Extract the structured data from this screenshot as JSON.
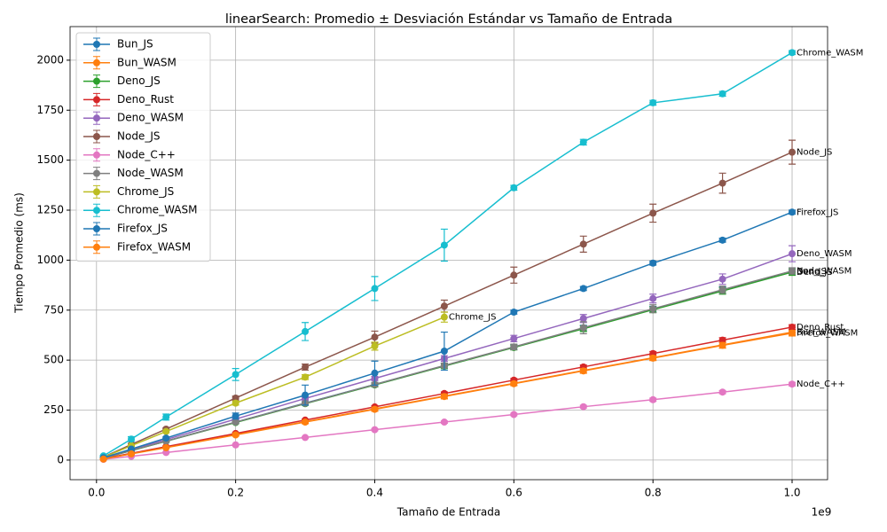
{
  "chart_data": {
    "type": "errorbar-line",
    "title": "linearSearch: Promedio ± Desviación Estándar vs Tamaño de Entrada",
    "xlabel": "Tamaño de Entrada",
    "ylabel": "Tiempo Promedio (ms)",
    "x_offset_label": "1e9",
    "x": [
      10000000,
      50000000,
      100000000,
      200000000,
      300000000,
      400000000,
      500000000,
      600000000,
      700000000,
      800000000,
      900000000,
      1000000000
    ],
    "xlim": [
      -38000000,
      1051000000
    ],
    "xticks": [
      {
        "value": 0,
        "label": "0.0"
      },
      {
        "value": 200000000,
        "label": "0.2"
      },
      {
        "value": 400000000,
        "label": "0.4"
      },
      {
        "value": 600000000,
        "label": "0.6"
      },
      {
        "value": 800000000,
        "label": "0.8"
      },
      {
        "value": 1000000000,
        "label": "1.0"
      }
    ],
    "ylim": [
      -98,
      2168
    ],
    "yticks": [
      0,
      250,
      500,
      750,
      1000,
      1250,
      1500,
      1750,
      2000
    ],
    "grid": true,
    "legend": "upper left",
    "series": [
      {
        "name": "Bun_JS",
        "color": "#1f77b4",
        "values": [
          10,
          48,
          95,
          190,
          285,
          378,
          472,
          565,
          660,
          755,
          850,
          945
        ],
        "errors": [
          2,
          3,
          4,
          6,
          8,
          10,
          12,
          12,
          14,
          14,
          16,
          16
        ]
      },
      {
        "name": "Bun_WASM",
        "color": "#ff7f0e",
        "values": [
          6,
          32,
          64,
          128,
          192,
          256,
          320,
          384,
          448,
          512,
          576,
          640
        ],
        "errors": [
          2,
          3,
          4,
          6,
          8,
          10,
          12,
          10,
          12,
          12,
          14,
          14
        ]
      },
      {
        "name": "Deno_JS",
        "color": "#2ca02c",
        "values": [
          10,
          47,
          94,
          188,
          282,
          376,
          470,
          563,
          657,
          752,
          846,
          940
        ],
        "errors": [
          2,
          3,
          4,
          6,
          8,
          10,
          12,
          12,
          14,
          14,
          16,
          16
        ]
      },
      {
        "name": "Deno_Rust",
        "color": "#d62728",
        "values": [
          7,
          34,
          67,
          133,
          200,
          266,
          333,
          400,
          466,
          533,
          600,
          665
        ],
        "errors": [
          1,
          2,
          3,
          4,
          5,
          6,
          8,
          8,
          10,
          10,
          12,
          12
        ]
      },
      {
        "name": "Deno_WASM",
        "color": "#9467bd",
        "values": [
          11,
          52,
          103,
          205,
          308,
          408,
          508,
          608,
          708,
          808,
          905,
          1032
        ],
        "errors": [
          2,
          3,
          4,
          6,
          8,
          10,
          14,
          16,
          20,
          22,
          26,
          40
        ]
      },
      {
        "name": "Node_JS",
        "color": "#8c564b",
        "values": [
          15,
          78,
          155,
          310,
          465,
          615,
          770,
          925,
          1080,
          1235,
          1385,
          1540
        ],
        "errors": [
          2,
          4,
          6,
          10,
          15,
          30,
          30,
          40,
          40,
          45,
          50,
          60
        ]
      },
      {
        "name": "Node_C++",
        "color": "#e377c2",
        "values": [
          4,
          19,
          38,
          76,
          113,
          152,
          190,
          228,
          267,
          302,
          340,
          380
        ],
        "errors": [
          1,
          1,
          2,
          3,
          4,
          5,
          6,
          6,
          7,
          8,
          8,
          9
        ]
      },
      {
        "name": "Node_WASM",
        "color": "#7f7f7f",
        "values": [
          10,
          48,
          95,
          190,
          284,
          378,
          473,
          566,
          662,
          757,
          852,
          946
        ],
        "errors": [
          2,
          3,
          4,
          6,
          8,
          10,
          12,
          14,
          30,
          20,
          18,
          16
        ]
      },
      {
        "name": "Chrome_JS",
        "color": "#bcbd22",
        "values": [
          14,
          72,
          143,
          285,
          415,
          570,
          715,
          null,
          null,
          null,
          null,
          null
        ],
        "errors": [
          2,
          4,
          6,
          10,
          12,
          20,
          25,
          null,
          null,
          null,
          null,
          null
        ]
      },
      {
        "name": "Chrome_WASM",
        "color": "#17becf",
        "values": [
          21,
          105,
          215,
          428,
          643,
          858,
          1075,
          1362,
          1590,
          1787,
          1832,
          2038
        ],
        "errors": [
          3,
          12,
          15,
          30,
          45,
          60,
          80,
          12,
          14,
          12,
          12,
          10
        ]
      },
      {
        "name": "Firefox_JS",
        "color": "#1f77b4",
        "values": [
          12,
          55,
          110,
          220,
          325,
          435,
          545,
          740,
          858,
          985,
          1100,
          1240
        ],
        "errors": [
          2,
          4,
          6,
          15,
          50,
          60,
          95,
          10,
          10,
          10,
          10,
          10
        ]
      },
      {
        "name": "Firefox_WASM",
        "color": "#ff7f0e",
        "values": [
          5,
          31,
          62,
          126,
          190,
          254,
          318,
          382,
          446,
          510,
          574,
          635
        ],
        "errors": [
          2,
          3,
          4,
          6,
          8,
          10,
          12,
          10,
          12,
          12,
          14,
          14
        ]
      }
    ]
  }
}
